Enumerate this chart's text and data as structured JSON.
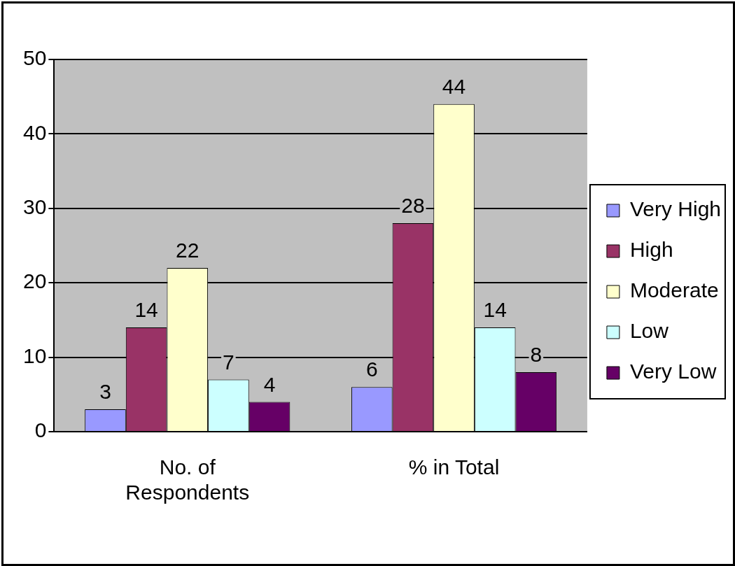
{
  "chart_data": {
    "type": "bar",
    "categories": [
      "No. of Respondents",
      "% in Total"
    ],
    "series": [
      {
        "name": "Very High",
        "color": "#9999ff",
        "values": [
          3,
          6
        ]
      },
      {
        "name": "High",
        "color": "#993366",
        "values": [
          14,
          28
        ]
      },
      {
        "name": "Moderate",
        "color": "#ffffcc",
        "values": [
          22,
          44
        ]
      },
      {
        "name": "Low",
        "color": "#ccffff",
        "values": [
          7,
          14
        ]
      },
      {
        "name": "Very Low",
        "color": "#660066",
        "values": [
          4,
          8
        ]
      }
    ],
    "ylim": [
      0,
      50
    ],
    "yticks": [
      0,
      10,
      20,
      30,
      40,
      50
    ],
    "grid": "y",
    "legend": "right",
    "data_labels": true
  }
}
